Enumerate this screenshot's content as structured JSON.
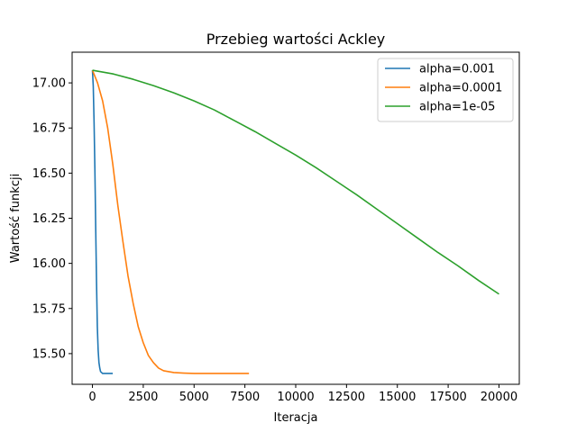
{
  "chart_data": {
    "type": "line",
    "title": "Przebieg wartości Ackley",
    "xlabel": "Iteracja",
    "ylabel": "Wartość funkcji",
    "xlim": [
      -1000,
      21000
    ],
    "ylim": [
      15.33,
      17.17
    ],
    "xticks": [
      0,
      2500,
      5000,
      7500,
      10000,
      12500,
      15000,
      17500,
      20000
    ],
    "yticks": [
      15.5,
      15.75,
      16.0,
      16.25,
      16.5,
      16.75,
      17.0
    ],
    "ytick_labels": [
      "15.50",
      "15.75",
      "16.00",
      "16.25",
      "16.50",
      "16.75",
      "17.00"
    ],
    "grid": false,
    "legend_position": "top-right",
    "series": [
      {
        "name": "alpha=0.001",
        "color": "#1f77b4",
        "x": [
          0,
          40,
          80,
          120,
          160,
          200,
          240,
          280,
          320,
          360,
          400,
          450,
          500,
          600,
          700,
          800,
          1000
        ],
        "y": [
          17.07,
          16.98,
          16.78,
          16.52,
          16.2,
          15.9,
          15.65,
          15.52,
          15.45,
          15.42,
          15.4,
          15.395,
          15.39,
          15.39,
          15.39,
          15.39,
          15.39
        ]
      },
      {
        "name": "alpha=0.0001",
        "color": "#ff7f0e",
        "x": [
          0,
          250,
          500,
          750,
          1000,
          1250,
          1500,
          1750,
          2000,
          2250,
          2500,
          2750,
          3000,
          3250,
          3500,
          4000,
          4500,
          5000,
          6000,
          7000,
          7700
        ],
        "y": [
          17.07,
          17.0,
          16.9,
          16.75,
          16.55,
          16.32,
          16.12,
          15.93,
          15.78,
          15.65,
          15.56,
          15.49,
          15.45,
          15.42,
          15.405,
          15.395,
          15.392,
          15.39,
          15.39,
          15.39,
          15.39
        ]
      },
      {
        "name": "alpha=1e-05",
        "color": "#2ca02c",
        "x": [
          0,
          1000,
          2000,
          3000,
          4000,
          5000,
          6000,
          7000,
          8000,
          9000,
          10000,
          11000,
          12000,
          13000,
          14000,
          15000,
          16000,
          17000,
          18000,
          19000,
          20000
        ],
        "y": [
          17.07,
          17.05,
          17.02,
          16.985,
          16.945,
          16.9,
          16.85,
          16.79,
          16.73,
          16.665,
          16.6,
          16.53,
          16.455,
          16.38,
          16.3,
          16.22,
          16.14,
          16.06,
          15.985,
          15.905,
          15.83
        ]
      }
    ]
  }
}
